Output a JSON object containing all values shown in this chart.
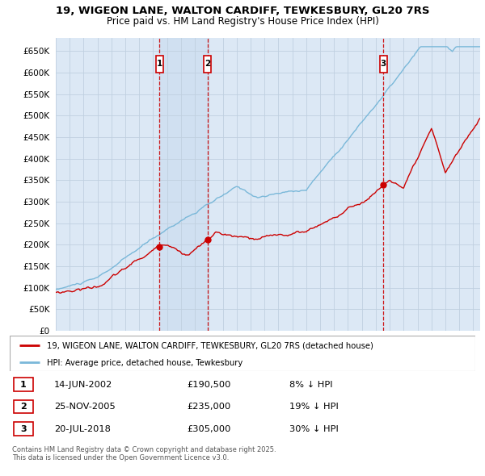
{
  "title": "19, WIGEON LANE, WALTON CARDIFF, TEWKESBURY, GL20 7RS",
  "subtitle": "Price paid vs. HM Land Registry's House Price Index (HPI)",
  "ylim": [
    0,
    680000
  ],
  "yticks": [
    0,
    50000,
    100000,
    150000,
    200000,
    250000,
    300000,
    350000,
    400000,
    450000,
    500000,
    550000,
    600000,
    650000
  ],
  "xlim_start": 1995.0,
  "xlim_end": 2025.5,
  "hpi_color": "#7ab8d9",
  "price_color": "#cc0000",
  "background_color": "#ffffff",
  "chart_bg_color": "#dce8f5",
  "grid_color": "#c0d0e0",
  "transactions": [
    {
      "num": 1,
      "date": "14-JUN-2002",
      "price": 190500,
      "year": 2002.45,
      "pct": "8% ↓ HPI"
    },
    {
      "num": 2,
      "date": "25-NOV-2005",
      "price": 235000,
      "year": 2005.9,
      "pct": "19% ↓ HPI"
    },
    {
      "num": 3,
      "date": "20-JUL-2018",
      "price": 305000,
      "year": 2018.55,
      "pct": "30% ↓ HPI"
    }
  ],
  "legend_line1": "19, WIGEON LANE, WALTON CARDIFF, TEWKESBURY, GL20 7RS (detached house)",
  "legend_line2": "HPI: Average price, detached house, Tewkesbury",
  "footer1": "Contains HM Land Registry data © Crown copyright and database right 2025.",
  "footer2": "This data is licensed under the Open Government Licence v3.0."
}
